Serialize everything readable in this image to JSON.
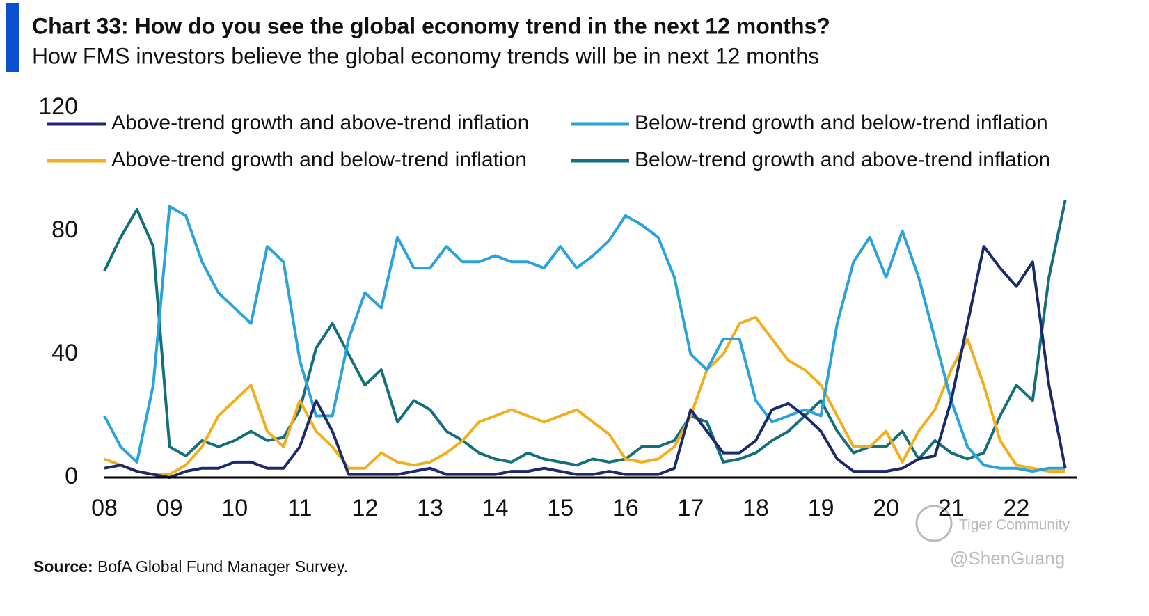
{
  "chart_data": {
    "type": "line",
    "title": "Chart 33: How do you see the global economy trend in the next 12 months?",
    "subtitle": "How FMS investors believe the global economy trends will be in next 12 months",
    "source_label": "Source:",
    "source": "BofA Global Fund Manager Survey.",
    "watermark": [
      "Tiger Community",
      "@ShenGuang"
    ],
    "x": [
      2008,
      2008.25,
      2008.5,
      2008.75,
      2009,
      2009.25,
      2009.5,
      2009.75,
      2010,
      2010.25,
      2010.5,
      2010.75,
      2011,
      2011.25,
      2011.5,
      2011.75,
      2012,
      2012.25,
      2012.5,
      2012.75,
      2013,
      2013.25,
      2013.5,
      2013.75,
      2014,
      2014.25,
      2014.5,
      2014.75,
      2015,
      2015.25,
      2015.5,
      2015.75,
      2016,
      2016.25,
      2016.5,
      2016.75,
      2017,
      2017.25,
      2017.5,
      2017.75,
      2018,
      2018.25,
      2018.5,
      2018.75,
      2019,
      2019.25,
      2019.5,
      2019.75,
      2020,
      2020.25,
      2020.5,
      2020.75,
      2021,
      2021.25,
      2021.5,
      2021.75,
      2022,
      2022.25,
      2022.5,
      2022.75
    ],
    "series": [
      {
        "name": "Above-trend growth and above-trend inflation",
        "color": "#1b2a6b",
        "values": [
          3,
          4,
          2,
          1,
          0,
          2,
          3,
          3,
          5,
          5,
          3,
          3,
          10,
          25,
          15,
          1,
          1,
          1,
          1,
          2,
          3,
          1,
          1,
          1,
          1,
          2,
          2,
          3,
          2,
          1,
          1,
          2,
          1,
          1,
          1,
          3,
          22,
          15,
          8,
          8,
          12,
          22,
          24,
          20,
          15,
          6,
          2,
          2,
          2,
          3,
          6,
          7,
          25,
          50,
          75,
          68,
          62,
          70,
          30,
          3
        ]
      },
      {
        "name": "Below-trend growth and below-trend inflation",
        "color": "#2aa3dc",
        "values": [
          20,
          10,
          5,
          30,
          88,
          85,
          70,
          60,
          55,
          50,
          75,
          70,
          38,
          20,
          20,
          45,
          60,
          55,
          78,
          68,
          68,
          75,
          70,
          70,
          72,
          70,
          70,
          68,
          75,
          68,
          72,
          77,
          85,
          82,
          78,
          65,
          40,
          35,
          45,
          45,
          25,
          18,
          20,
          22,
          20,
          50,
          70,
          78,
          65,
          80,
          65,
          45,
          25,
          10,
          4,
          3,
          3,
          2,
          3,
          3
        ]
      },
      {
        "name": "Above-trend growth and below-trend inflation",
        "color": "#f2ae1c",
        "values": [
          6,
          4,
          2,
          1,
          1,
          4,
          10,
          20,
          25,
          30,
          15,
          10,
          25,
          15,
          10,
          3,
          3,
          8,
          5,
          4,
          5,
          8,
          12,
          18,
          20,
          22,
          20,
          18,
          20,
          22,
          18,
          14,
          6,
          5,
          6,
          10,
          20,
          35,
          40,
          50,
          52,
          45,
          38,
          35,
          30,
          20,
          10,
          10,
          15,
          5,
          15,
          22,
          35,
          45,
          30,
          12,
          4,
          3,
          2,
          2
        ]
      },
      {
        "name": "Below-trend growth and above-trend inflation",
        "color": "#13707a",
        "values": [
          67,
          78,
          87,
          75,
          10,
          7,
          12,
          10,
          12,
          15,
          12,
          13,
          22,
          42,
          50,
          40,
          30,
          35,
          18,
          25,
          22,
          15,
          12,
          8,
          6,
          5,
          8,
          6,
          5,
          4,
          6,
          5,
          6,
          10,
          10,
          12,
          20,
          18,
          5,
          6,
          8,
          12,
          15,
          20,
          25,
          15,
          8,
          10,
          10,
          15,
          6,
          12,
          8,
          6,
          8,
          20,
          30,
          25,
          65,
          90
        ]
      }
    ],
    "xlim": [
      2008,
      2023
    ],
    "xticks": [
      {
        "value": 2008,
        "label": "08"
      },
      {
        "value": 2009,
        "label": "09"
      },
      {
        "value": 2010,
        "label": "10"
      },
      {
        "value": 2011,
        "label": "11"
      },
      {
        "value": 2012,
        "label": "12"
      },
      {
        "value": 2013,
        "label": "13"
      },
      {
        "value": 2014,
        "label": "14"
      },
      {
        "value": 2015,
        "label": "15"
      },
      {
        "value": 2016,
        "label": "16"
      },
      {
        "value": 2017,
        "label": "17"
      },
      {
        "value": 2018,
        "label": "18"
      },
      {
        "value": 2019,
        "label": "19"
      },
      {
        "value": 2020,
        "label": "20"
      },
      {
        "value": 2021,
        "label": "21"
      },
      {
        "value": 2022,
        "label": "22"
      }
    ],
    "ylim": [
      0,
      120
    ],
    "yticks": [
      0,
      40,
      80,
      120
    ],
    "grid": false
  }
}
